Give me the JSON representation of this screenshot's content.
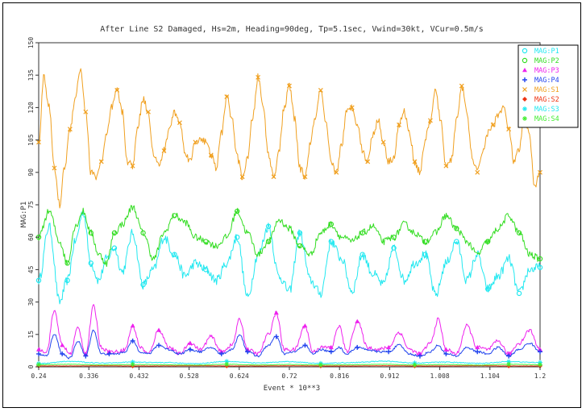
{
  "chart_data": {
    "type": "line",
    "title": "After Line S2 Damaged, Hs=2m, Heading=90deg, Tp=5.1sec, Vwind=30kt, VCur=0.5m/s",
    "xlabel": "Event * 10**3",
    "ylabel": "MAG:P1",
    "xlim": [
      0.24,
      1.2
    ],
    "ylim": [
      0,
      150
    ],
    "x_ticks": [
      "0.24",
      "0.336",
      "0.432",
      "0.528",
      "0.624",
      "0.72",
      "0.816",
      "0.912",
      "1.008",
      "1.104",
      "1.2"
    ],
    "y_ticks": [
      "0",
      "15",
      "30",
      "45",
      "60",
      "75",
      "90",
      "105",
      "120",
      "135",
      "150"
    ],
    "grid": false,
    "legend_position": "top-right",
    "series": [
      {
        "name": "MAG:P1",
        "color": "#22e8f0",
        "marker": "circle-open",
        "x": [
          0.24,
          0.26,
          0.28,
          0.295,
          0.31,
          0.325,
          0.34,
          0.355,
          0.37,
          0.385,
          0.4,
          0.42,
          0.44,
          0.46,
          0.48,
          0.5,
          0.52,
          0.54,
          0.56,
          0.58,
          0.6,
          0.62,
          0.64,
          0.66,
          0.68,
          0.7,
          0.72,
          0.74,
          0.76,
          0.78,
          0.8,
          0.82,
          0.84,
          0.86,
          0.88,
          0.9,
          0.92,
          0.94,
          0.96,
          0.98,
          1.0,
          1.02,
          1.04,
          1.06,
          1.08,
          1.1,
          1.12,
          1.14,
          1.16,
          1.18,
          1.2
        ],
        "values": [
          40,
          65,
          30,
          40,
          58,
          72,
          48,
          40,
          50,
          55,
          44,
          62,
          38,
          45,
          60,
          52,
          42,
          48,
          45,
          40,
          48,
          60,
          32,
          52,
          65,
          42,
          35,
          62,
          40,
          34,
          58,
          50,
          35,
          52,
          43,
          38,
          55,
          40,
          48,
          52,
          33,
          48,
          58,
          40,
          52,
          36,
          42,
          50,
          34,
          45,
          46
        ]
      },
      {
        "name": "MAG:P2",
        "color": "#33dd22",
        "marker": "circle-open",
        "x": [
          0.24,
          0.26,
          0.28,
          0.295,
          0.31,
          0.325,
          0.34,
          0.355,
          0.37,
          0.385,
          0.4,
          0.42,
          0.44,
          0.46,
          0.48,
          0.5,
          0.52,
          0.54,
          0.56,
          0.58,
          0.6,
          0.62,
          0.64,
          0.66,
          0.68,
          0.7,
          0.72,
          0.74,
          0.76,
          0.78,
          0.8,
          0.82,
          0.84,
          0.86,
          0.88,
          0.9,
          0.92,
          0.94,
          0.96,
          0.98,
          1.0,
          1.02,
          1.04,
          1.06,
          1.08,
          1.1,
          1.12,
          1.14,
          1.16,
          1.18,
          1.2
        ],
        "values": [
          60,
          72,
          58,
          48,
          65,
          72,
          62,
          52,
          48,
          62,
          66,
          74,
          62,
          50,
          62,
          70,
          67,
          60,
          58,
          56,
          60,
          72,
          62,
          52,
          58,
          68,
          64,
          56,
          52,
          62,
          66,
          60,
          58,
          62,
          65,
          58,
          60,
          66,
          62,
          58,
          62,
          70,
          64,
          58,
          52,
          58,
          64,
          70,
          62,
          52,
          50
        ]
      },
      {
        "name": "MAG:P3",
        "color": "#ee22ee",
        "marker": "triangle",
        "x": [
          0.24,
          0.255,
          0.27,
          0.285,
          0.3,
          0.315,
          0.33,
          0.345,
          0.36,
          0.375,
          0.39,
          0.405,
          0.42,
          0.435,
          0.45,
          0.47,
          0.49,
          0.51,
          0.53,
          0.55,
          0.57,
          0.59,
          0.61,
          0.625,
          0.64,
          0.66,
          0.68,
          0.695,
          0.71,
          0.73,
          0.75,
          0.765,
          0.78,
          0.8,
          0.815,
          0.83,
          0.85,
          0.87,
          0.89,
          0.91,
          0.93,
          0.95,
          0.97,
          0.99,
          1.005,
          1.02,
          1.04,
          1.06,
          1.08,
          1.1,
          1.12,
          1.14,
          1.16,
          1.18,
          1.2
        ],
        "values": [
          8,
          7,
          26,
          10,
          6,
          18,
          6,
          28,
          9,
          7,
          7,
          8,
          19,
          9,
          6,
          17,
          9,
          6,
          11,
          8,
          14,
          7,
          10,
          22,
          8,
          6,
          15,
          25,
          8,
          8,
          19,
          7,
          9,
          9,
          19,
          7,
          21,
          9,
          8,
          9,
          16,
          8,
          6,
          11,
          22,
          8,
          6,
          19,
          9,
          8,
          12,
          6,
          11,
          17,
          8
        ]
      },
      {
        "name": "MAG:P4",
        "color": "#2244ee",
        "marker": "plus",
        "x": [
          0.24,
          0.255,
          0.27,
          0.285,
          0.3,
          0.315,
          0.33,
          0.345,
          0.36,
          0.375,
          0.39,
          0.405,
          0.42,
          0.435,
          0.45,
          0.47,
          0.49,
          0.51,
          0.53,
          0.55,
          0.57,
          0.59,
          0.61,
          0.625,
          0.64,
          0.66,
          0.68,
          0.695,
          0.71,
          0.73,
          0.75,
          0.765,
          0.78,
          0.8,
          0.815,
          0.83,
          0.85,
          0.87,
          0.89,
          0.91,
          0.93,
          0.95,
          0.97,
          0.99,
          1.005,
          1.02,
          1.04,
          1.06,
          1.08,
          1.1,
          1.12,
          1.14,
          1.16,
          1.18,
          1.2
        ],
        "values": [
          6,
          5,
          15,
          6,
          4,
          12,
          5,
          17,
          6,
          6,
          6,
          7,
          12,
          7,
          6,
          10,
          8,
          6,
          8,
          7,
          9,
          6,
          8,
          15,
          7,
          5,
          10,
          14,
          6,
          7,
          10,
          6,
          8,
          7,
          9,
          6,
          9,
          8,
          7,
          7,
          10,
          6,
          5,
          7,
          10,
          6,
          5,
          9,
          7,
          6,
          9,
          5,
          8,
          11,
          7
        ]
      },
      {
        "name": "MAG:S1",
        "color": "#f0a020",
        "marker": "cross",
        "x": [
          0.24,
          0.25,
          0.26,
          0.27,
          0.28,
          0.29,
          0.3,
          0.31,
          0.32,
          0.33,
          0.34,
          0.35,
          0.36,
          0.37,
          0.38,
          0.39,
          0.4,
          0.41,
          0.42,
          0.43,
          0.44,
          0.45,
          0.46,
          0.47,
          0.48,
          0.49,
          0.5,
          0.51,
          0.52,
          0.53,
          0.54,
          0.55,
          0.56,
          0.57,
          0.58,
          0.59,
          0.6,
          0.61,
          0.62,
          0.63,
          0.64,
          0.65,
          0.66,
          0.67,
          0.68,
          0.69,
          0.7,
          0.71,
          0.72,
          0.73,
          0.74,
          0.75,
          0.76,
          0.77,
          0.78,
          0.79,
          0.8,
          0.81,
          0.82,
          0.83,
          0.84,
          0.85,
          0.86,
          0.87,
          0.88,
          0.89,
          0.9,
          0.91,
          0.92,
          0.93,
          0.94,
          0.95,
          0.96,
          0.97,
          0.98,
          0.99,
          1.0,
          1.01,
          1.02,
          1.03,
          1.04,
          1.05,
          1.06,
          1.07,
          1.08,
          1.09,
          1.1,
          1.11,
          1.12,
          1.13,
          1.14,
          1.15,
          1.16,
          1.17,
          1.18,
          1.19,
          1.2
        ],
        "values": [
          104,
          134,
          120,
          92,
          75,
          93,
          110,
          125,
          138,
          118,
          90,
          88,
          95,
          107,
          120,
          128,
          118,
          95,
          93,
          112,
          124,
          118,
          98,
          93,
          100,
          110,
          118,
          113,
          100,
          95,
          104,
          106,
          104,
          98,
          92,
          108,
          125,
          115,
          97,
          88,
          96,
          116,
          134,
          120,
          98,
          88,
          100,
          120,
          130,
          115,
          92,
          88,
          103,
          116,
          128,
          112,
          94,
          90,
          103,
          118,
          120,
          113,
          100,
          95,
          108,
          114,
          104,
          95,
          97,
          112,
          118,
          108,
          95,
          90,
          105,
          114,
          128,
          113,
          93,
          96,
          114,
          130,
          117,
          97,
          90,
          100,
          108,
          112,
          117,
          120,
          110,
          95,
          100,
          118,
          106,
          83,
          90
        ]
      },
      {
        "name": "MAG:S2",
        "color": "#ee3311",
        "marker": "diamond",
        "x": [
          0.24,
          0.3,
          0.36,
          0.42,
          0.48,
          0.54,
          0.6,
          0.66,
          0.72,
          0.78,
          0.84,
          0.9,
          0.96,
          1.02,
          1.08,
          1.14,
          1.2
        ],
        "values": [
          0.4,
          0.4,
          0.5,
          0.4,
          0.4,
          0.5,
          0.4,
          0.4,
          0.5,
          0.4,
          0.4,
          0.5,
          0.4,
          0.4,
          0.5,
          0.4,
          0.4
        ]
      },
      {
        "name": "MAG:S3",
        "color": "#22e8f0",
        "marker": "star",
        "x": [
          0.24,
          0.3,
          0.36,
          0.42,
          0.48,
          0.54,
          0.6,
          0.66,
          0.72,
          0.78,
          0.84,
          0.9,
          0.96,
          1.02,
          1.08,
          1.14,
          1.2
        ],
        "values": [
          1.5,
          2.5,
          1.8,
          2.2,
          2.0,
          1.5,
          2.5,
          1.8,
          2.4,
          1.6,
          2.0,
          2.6,
          1.8,
          2.2,
          1.6,
          2.4,
          2.0
        ]
      },
      {
        "name": "MAG:S4",
        "color": "#44ee33",
        "marker": "star",
        "x": [
          0.24,
          0.3,
          0.36,
          0.42,
          0.48,
          0.54,
          0.6,
          0.66,
          0.72,
          0.78,
          0.84,
          0.9,
          0.96,
          1.02,
          1.08,
          1.14,
          1.2
        ],
        "values": [
          1.0,
          1.2,
          0.9,
          1.1,
          1.0,
          0.8,
          1.2,
          0.9,
          1.1,
          0.9,
          1.0,
          1.2,
          0.9,
          1.1,
          0.8,
          1.2,
          1.0
        ]
      }
    ]
  }
}
